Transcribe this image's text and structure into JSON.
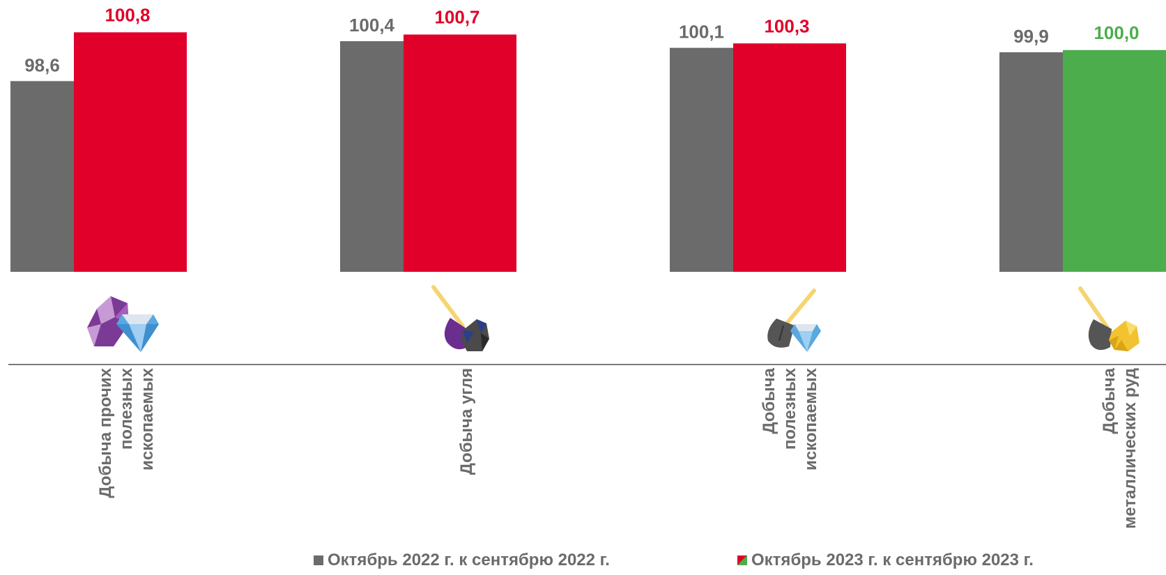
{
  "chart_data": {
    "type": "bar",
    "categories": [
      [
        "Добыча прочих",
        "полезных",
        "ископаемых"
      ],
      [
        "Добыча угля"
      ],
      [
        "Добыча",
        "полезных",
        "ископаемых"
      ],
      [
        "Добыча",
        "металлических руд"
      ]
    ],
    "category_icons": [
      "gem-stones-icon",
      "shovel-coal-icon",
      "shovel-diamond-icon",
      "shovel-gold-ore-icon"
    ],
    "series": [
      {
        "name": "Октябрь 2022 г. к сентябрю 2022 г.",
        "values": [
          98.6,
          100.4,
          100.1,
          99.9
        ],
        "labels": [
          "98,6",
          "100,4",
          "100,1",
          "99,9"
        ],
        "color": "#6b6b6b"
      },
      {
        "name": "Октябрь 2023 г. к сентябрю 2023 г.",
        "values": [
          100.8,
          100.7,
          100.3,
          100.0
        ],
        "labels": [
          "100,8",
          "100,7",
          "100,3",
          "100,0"
        ],
        "colors": [
          "#e0002a",
          "#e0002a",
          "#e0002a",
          "#4cad4c"
        ]
      }
    ],
    "baseline_value": 90,
    "ylim": [
      90,
      101
    ],
    "grid": false,
    "legend_position": "bottom"
  },
  "colors": {
    "axis": "#7a7a7a",
    "text": "#6b6b6b",
    "red": "#e0002a",
    "green": "#4cad4c",
    "gray": "#6b6b6b"
  }
}
